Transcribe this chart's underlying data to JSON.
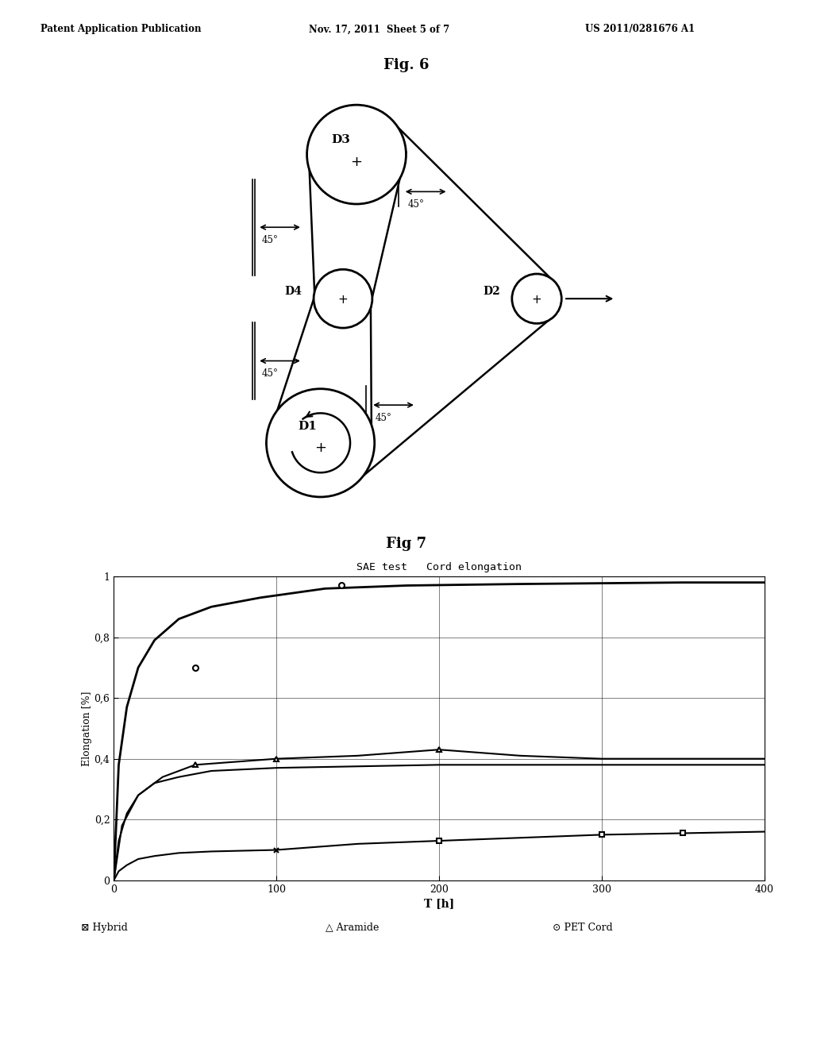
{
  "header_left": "Patent Application Publication",
  "header_center": "Nov. 17, 2011  Sheet 5 of 7",
  "header_right": "US 2011/0281676 A1",
  "fig6_title": "Fig. 6",
  "fig7_title": "Fig 7",
  "chart_title": "SAE test   Cord elongation",
  "xlabel": "T [h]",
  "ylabel": "Elongation [%]",
  "xlim": [
    0,
    400
  ],
  "ylim": [
    0,
    1
  ],
  "xticks": [
    0,
    100,
    200,
    300,
    400
  ],
  "ytick_labels": [
    "0",
    "0,2",
    "0,4",
    "0,6",
    "0,8",
    "1"
  ],
  "ytick_vals": [
    0,
    0.2,
    0.4,
    0.6,
    0.8,
    1.0
  ],
  "background_color": "#ffffff",
  "line_color": "#000000"
}
